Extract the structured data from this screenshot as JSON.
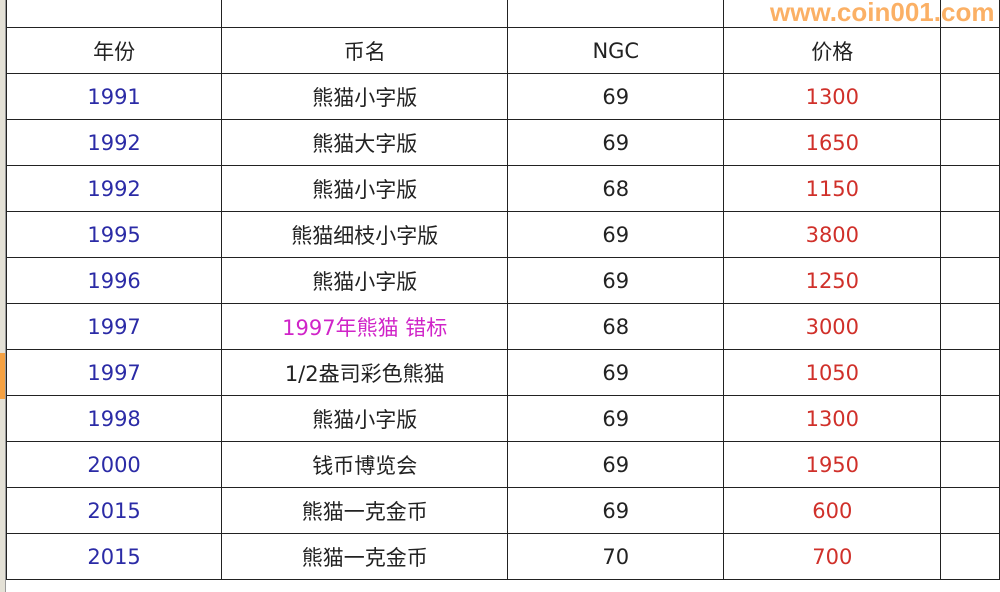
{
  "headers": [
    "年份",
    "币名",
    "NGC",
    "价格"
  ],
  "rows": [
    {
      "year": "1991",
      "name": "熊猫小字版",
      "ngc": "69",
      "price": "1300"
    },
    {
      "year": "1992",
      "name": "熊猫大字版",
      "ngc": "69",
      "price": "1650"
    },
    {
      "year": "1992",
      "name": "熊猫小字版",
      "ngc": "68",
      "price": "1150"
    },
    {
      "year": "1995",
      "name": "熊猫细枝小字版",
      "ngc": "69",
      "price": "3800"
    },
    {
      "year": "1996",
      "name": "熊猫小字版",
      "ngc": "69",
      "price": "1250"
    },
    {
      "year": "1997",
      "name": "1997年熊猫 错标",
      "ngc": "68",
      "price": "3000",
      "highlight": "#d024c8"
    },
    {
      "year": "1997",
      "name": "1/2盎司彩色熊猫",
      "ngc": "69",
      "price": "1050"
    },
    {
      "year": "1998",
      "name": "熊猫小字版",
      "ngc": "69",
      "price": "1300"
    },
    {
      "year": "2000",
      "name": "钱币博览会",
      "ngc": "69",
      "price": "1950"
    },
    {
      "year": "2015",
      "name": "熊猫一克金币",
      "ngc": "69",
      "price": "600"
    },
    {
      "year": "2015",
      "name": "熊猫一克金币",
      "ngc": "70",
      "price": "700"
    }
  ],
  "watermark": "www.coin001.com",
  "colors": {
    "year": "#2b2ba6",
    "price": "#d0302a",
    "highlight": "#d024c8",
    "watermark": "#fa9632"
  }
}
